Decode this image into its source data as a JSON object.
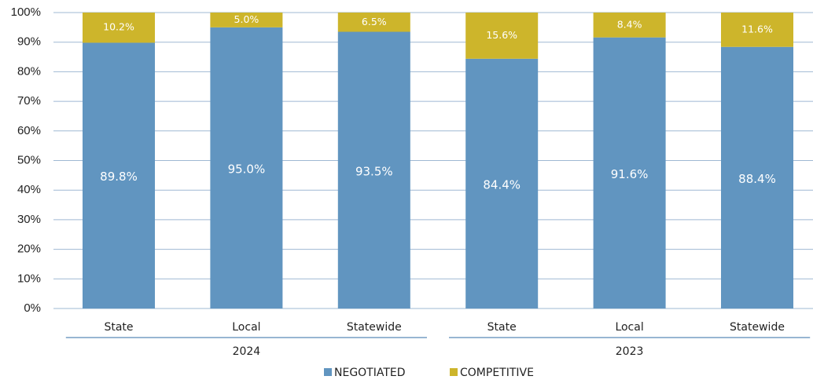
{
  "chart_data": {
    "type": "stacked_bar",
    "categories": [
      "State",
      "Local",
      "Statewide",
      "State",
      "Local",
      "Statewide"
    ],
    "groups": [
      "2024",
      "2023"
    ],
    "series": [
      {
        "name": "NEGOTIATED",
        "color": "#6195c0",
        "values": [
          89.8,
          95.0,
          93.5,
          84.4,
          91.6,
          88.4
        ],
        "value_labels": [
          "89.8%",
          "95.0%",
          "93.5%",
          "84.4%",
          "91.6%",
          "88.4%"
        ]
      },
      {
        "name": "COMPETITIVE",
        "color": "#cdb52b",
        "values": [
          10.2,
          5.0,
          6.5,
          15.6,
          8.4,
          11.6
        ],
        "value_labels": [
          "10.2%",
          "5.0%",
          "6.5%",
          "15.6%",
          "8.4%",
          "11.6%"
        ]
      }
    ],
    "ylim": [
      0,
      100
    ],
    "yticks": [
      {
        "value": 0,
        "label": "0%"
      },
      {
        "value": 10,
        "label": "10%"
      },
      {
        "value": 20,
        "label": "20%"
      },
      {
        "value": 30,
        "label": "30%"
      },
      {
        "value": 40,
        "label": "40%"
      },
      {
        "value": 50,
        "label": "50%"
      },
      {
        "value": 60,
        "label": "60%"
      },
      {
        "value": 70,
        "label": "70%"
      },
      {
        "value": 80,
        "label": "80%"
      },
      {
        "value": 90,
        "label": "90%"
      },
      {
        "value": 100,
        "label": "100%"
      }
    ],
    "grid": true,
    "legend": "bottom"
  }
}
